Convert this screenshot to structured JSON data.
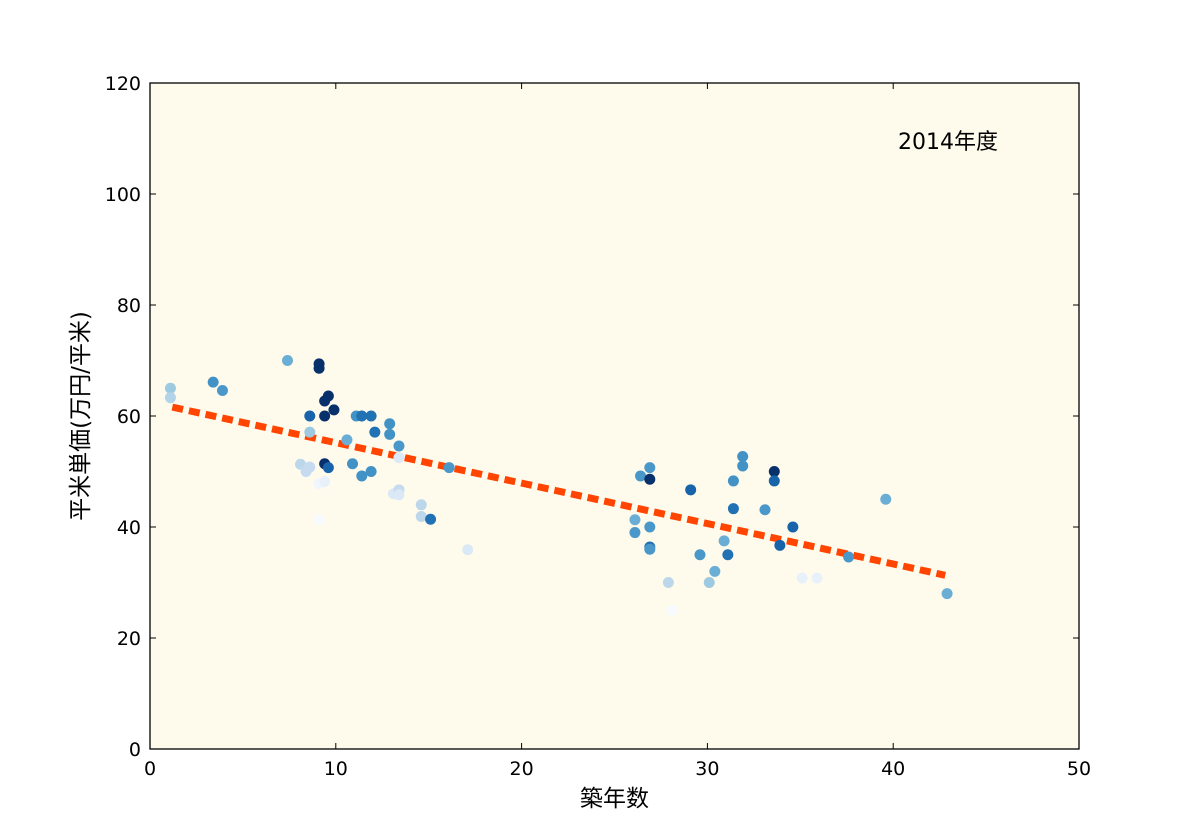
{
  "chart_data": {
    "type": "scatter",
    "xlabel": "築年数",
    "ylabel": "平米単価(万円/平米)",
    "annotation": "2014年度",
    "xlim": [
      0,
      50
    ],
    "ylim": [
      0,
      120
    ],
    "xticks": [
      "0",
      "10",
      "20",
      "30",
      "40",
      "50"
    ],
    "yticks": [
      "0",
      "20",
      "40",
      "60",
      "80",
      "100",
      "120"
    ],
    "grid": false,
    "background_color": "#fffbec",
    "trend_color": "#ff4500",
    "trend": {
      "x": [
        1.2,
        42.8
      ],
      "y": [
        61.6,
        31.3
      ]
    },
    "points": [
      {
        "x": 1.1,
        "y": 65.0,
        "c": "#9ecae1"
      },
      {
        "x": 1.1,
        "y": 63.3,
        "c": "#b3d3e8"
      },
      {
        "x": 3.4,
        "y": 66.1,
        "c": "#4292c6"
      },
      {
        "x": 3.9,
        "y": 64.6,
        "c": "#4a98c9"
      },
      {
        "x": 7.4,
        "y": 70.0,
        "c": "#6aaed6"
      },
      {
        "x": 8.1,
        "y": 51.3,
        "c": "#bcd7eb"
      },
      {
        "x": 8.4,
        "y": 50.0,
        "c": "#c6dbef"
      },
      {
        "x": 8.6,
        "y": 50.8,
        "c": "#c6dbef"
      },
      {
        "x": 8.6,
        "y": 57.1,
        "c": "#9ecae1"
      },
      {
        "x": 8.6,
        "y": 60.0,
        "c": "#1764ab"
      },
      {
        "x": 9.1,
        "y": 69.4,
        "c": "#08306b"
      },
      {
        "x": 9.1,
        "y": 68.6,
        "c": "#08306b"
      },
      {
        "x": 9.4,
        "y": 62.7,
        "c": "#08306b"
      },
      {
        "x": 9.4,
        "y": 60.0,
        "c": "#08306b"
      },
      {
        "x": 9.6,
        "y": 63.6,
        "c": "#08306b"
      },
      {
        "x": 9.9,
        "y": 61.1,
        "c": "#08306b"
      },
      {
        "x": 9.4,
        "y": 51.4,
        "c": "#08306b"
      },
      {
        "x": 9.6,
        "y": 50.7,
        "c": "#1764ab"
      },
      {
        "x": 9.1,
        "y": 47.8,
        "c": "#f0f6fd"
      },
      {
        "x": 9.4,
        "y": 48.2,
        "c": "#e8f1fa"
      },
      {
        "x": 9.1,
        "y": 41.3,
        "c": "#f7fbff"
      },
      {
        "x": 10.6,
        "y": 55.7,
        "c": "#6aaed6"
      },
      {
        "x": 10.9,
        "y": 51.4,
        "c": "#4292c6"
      },
      {
        "x": 11.1,
        "y": 60.0,
        "c": "#4292c6"
      },
      {
        "x": 11.4,
        "y": 60.0,
        "c": "#2171b5"
      },
      {
        "x": 11.4,
        "y": 49.2,
        "c": "#4292c6"
      },
      {
        "x": 11.9,
        "y": 60.0,
        "c": "#2171b5"
      },
      {
        "x": 11.9,
        "y": 50.0,
        "c": "#4292c6"
      },
      {
        "x": 12.1,
        "y": 57.1,
        "c": "#2171b5"
      },
      {
        "x": 12.9,
        "y": 58.6,
        "c": "#4292c6"
      },
      {
        "x": 12.9,
        "y": 56.7,
        "c": "#4292c6"
      },
      {
        "x": 13.4,
        "y": 54.6,
        "c": "#4a98c9"
      },
      {
        "x": 13.4,
        "y": 52.5,
        "c": "#dbe9f6"
      },
      {
        "x": 13.1,
        "y": 46.0,
        "c": "#dbe9f6"
      },
      {
        "x": 13.4,
        "y": 46.7,
        "c": "#c6dbef"
      },
      {
        "x": 13.4,
        "y": 45.8,
        "c": "#dbe9f6"
      },
      {
        "x": 14.6,
        "y": 44.0,
        "c": "#bcd7eb"
      },
      {
        "x": 14.6,
        "y": 41.9,
        "c": "#bcd7eb"
      },
      {
        "x": 15.1,
        "y": 41.4,
        "c": "#2171b5"
      },
      {
        "x": 16.1,
        "y": 50.7,
        "c": "#4a98c9"
      },
      {
        "x": 17.1,
        "y": 35.9,
        "c": "#dbe9f6"
      },
      {
        "x": 26.1,
        "y": 41.3,
        "c": "#6aaed6"
      },
      {
        "x": 26.1,
        "y": 39.0,
        "c": "#4a98c9"
      },
      {
        "x": 26.4,
        "y": 49.2,
        "c": "#4a98c9"
      },
      {
        "x": 26.9,
        "y": 50.7,
        "c": "#4a98c9"
      },
      {
        "x": 26.9,
        "y": 48.6,
        "c": "#08306b"
      },
      {
        "x": 26.9,
        "y": 40.0,
        "c": "#4a98c9"
      },
      {
        "x": 26.9,
        "y": 36.4,
        "c": "#2171b5"
      },
      {
        "x": 26.9,
        "y": 36.0,
        "c": "#4a98c9"
      },
      {
        "x": 27.9,
        "y": 30.0,
        "c": "#bcd7eb"
      },
      {
        "x": 28.1,
        "y": 25.0,
        "c": "#f7fbff"
      },
      {
        "x": 29.1,
        "y": 46.7,
        "c": "#1764ab"
      },
      {
        "x": 29.6,
        "y": 35.0,
        "c": "#4a98c9"
      },
      {
        "x": 30.1,
        "y": 30.0,
        "c": "#9ecae1"
      },
      {
        "x": 30.4,
        "y": 32.0,
        "c": "#6aaed6"
      },
      {
        "x": 30.9,
        "y": 37.5,
        "c": "#6aaed6"
      },
      {
        "x": 31.1,
        "y": 35.0,
        "c": "#2171b5"
      },
      {
        "x": 31.4,
        "y": 48.3,
        "c": "#4292c6"
      },
      {
        "x": 31.4,
        "y": 43.3,
        "c": "#2171b5"
      },
      {
        "x": 31.9,
        "y": 52.7,
        "c": "#4292c6"
      },
      {
        "x": 31.9,
        "y": 51.0,
        "c": "#4292c6"
      },
      {
        "x": 33.1,
        "y": 43.1,
        "c": "#4a98c9"
      },
      {
        "x": 33.6,
        "y": 50.0,
        "c": "#08306b"
      },
      {
        "x": 33.6,
        "y": 48.3,
        "c": "#1764ab"
      },
      {
        "x": 33.9,
        "y": 36.7,
        "c": "#1764ab"
      },
      {
        "x": 34.6,
        "y": 40.0,
        "c": "#1764ab"
      },
      {
        "x": 35.1,
        "y": 30.8,
        "c": "#e8f1fa"
      },
      {
        "x": 35.9,
        "y": 30.8,
        "c": "#e8f1fa"
      },
      {
        "x": 37.6,
        "y": 34.6,
        "c": "#4a98c9"
      },
      {
        "x": 39.6,
        "y": 45.0,
        "c": "#6aaed6"
      },
      {
        "x": 42.9,
        "y": 28.0,
        "c": "#6aaed6"
      }
    ]
  }
}
